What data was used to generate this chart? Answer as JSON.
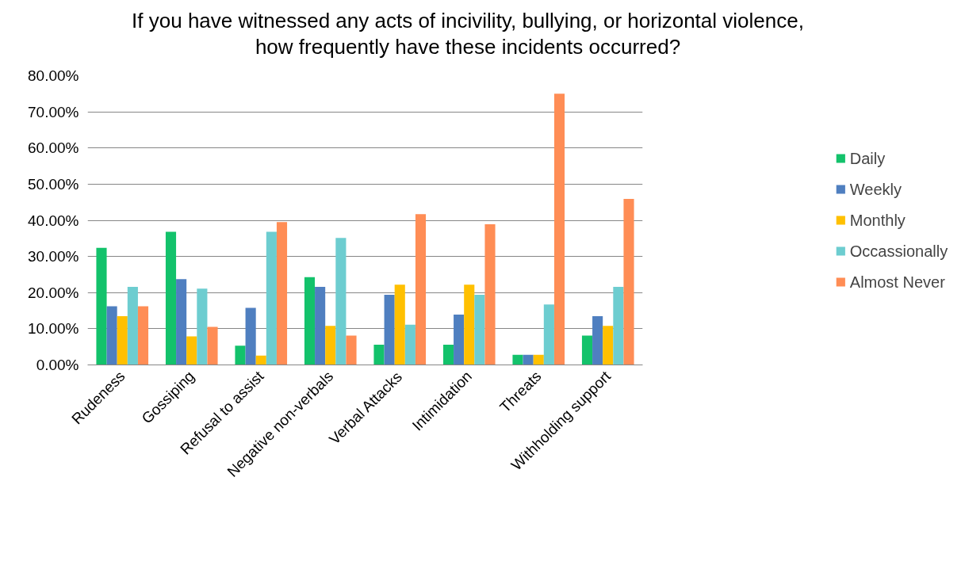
{
  "chart_data": {
    "type": "bar",
    "title": "If you have witnessed any acts of incivility, bullying, or horizontal violence, how frequently have these incidents occurred?",
    "categories": [
      "Rudeness",
      "Gossiping",
      "Refusal to assist",
      "Negative non-verbals",
      "Verbal Attacks",
      "Intimidation",
      "Threats",
      "Withholding support"
    ],
    "series": [
      {
        "name": "Daily",
        "color": "#13c26b",
        "values": [
          32.4,
          36.8,
          5.3,
          24.3,
          5.6,
          5.6,
          2.8,
          8.1
        ]
      },
      {
        "name": "Weekly",
        "color": "#4f7fc0",
        "values": [
          16.2,
          23.7,
          15.8,
          21.6,
          19.4,
          13.9,
          2.8,
          13.5
        ]
      },
      {
        "name": "Monthly",
        "color": "#ffc000",
        "values": [
          13.5,
          7.9,
          2.6,
          10.8,
          22.2,
          22.2,
          2.8,
          10.8
        ]
      },
      {
        "name": "Occassionally",
        "color": "#6dcdd0",
        "values": [
          21.6,
          21.1,
          36.8,
          35.1,
          11.1,
          19.4,
          16.7,
          21.6
        ]
      },
      {
        "name": "Almost Never",
        "color": "#ff8d55",
        "values": [
          16.2,
          10.5,
          39.5,
          8.1,
          41.7,
          38.9,
          75.0,
          45.9
        ]
      }
    ],
    "ylim": [
      0,
      80
    ],
    "yticks": [
      {
        "value": 0,
        "label": "0.00%"
      },
      {
        "value": 10,
        "label": "10.00%"
      },
      {
        "value": 20,
        "label": "20.00%"
      },
      {
        "value": 30,
        "label": "30.00%"
      },
      {
        "value": 40,
        "label": "40.00%"
      },
      {
        "value": 50,
        "label": "50.00%"
      },
      {
        "value": 60,
        "label": "60.00%"
      },
      {
        "value": 70,
        "label": "70.00%"
      },
      {
        "value": 80,
        "label": "80.00%"
      }
    ],
    "grid": "y",
    "legend": "right"
  }
}
